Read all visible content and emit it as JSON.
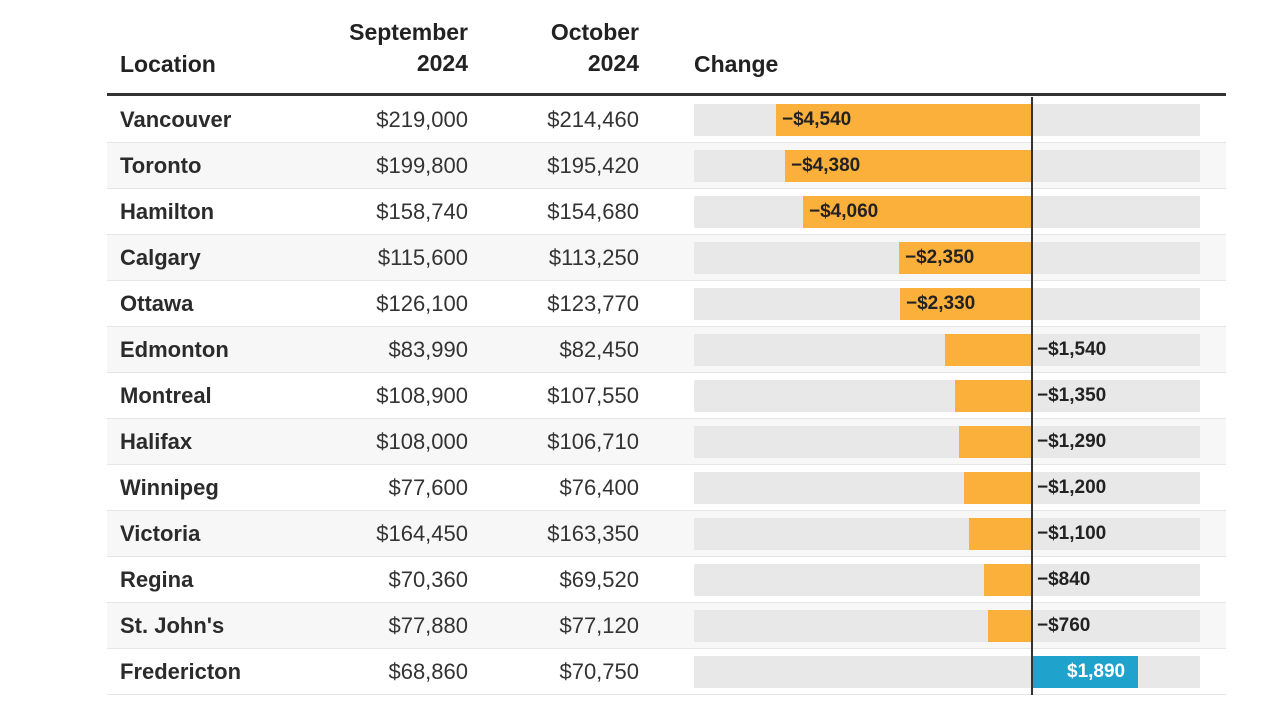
{
  "headers": {
    "location": "Location",
    "september": "September 2024",
    "september_line1": "September",
    "september_line2": "2024",
    "october": "October 2024",
    "october_line1": "October",
    "october_line2": "2024",
    "change": "Change"
  },
  "colors": {
    "negative": "#fbb03b",
    "positive": "#1fa3cc",
    "track": "#e8e8e8",
    "negative_label": "#222222",
    "positive_label": "#ffffff"
  },
  "rows": [
    {
      "location": "Vancouver",
      "sep": "$219,000",
      "oct": "$214,460",
      "change_label": "−$4,540"
    },
    {
      "location": "Toronto",
      "sep": "$199,800",
      "oct": "$195,420",
      "change_label": "−$4,380"
    },
    {
      "location": "Hamilton",
      "sep": "$158,740",
      "oct": "$154,680",
      "change_label": "−$4,060"
    },
    {
      "location": "Calgary",
      "sep": "$115,600",
      "oct": "$113,250",
      "change_label": "−$2,350"
    },
    {
      "location": "Ottawa",
      "sep": "$126,100",
      "oct": "$123,770",
      "change_label": "−$2,330"
    },
    {
      "location": "Edmonton",
      "sep": "$83,990",
      "oct": "$82,450",
      "change_label": "−$1,540"
    },
    {
      "location": "Montreal",
      "sep": "$108,900",
      "oct": "$107,550",
      "change_label": "−$1,350"
    },
    {
      "location": "Halifax",
      "sep": "$108,000",
      "oct": "$106,710",
      "change_label": "−$1,290"
    },
    {
      "location": "Winnipeg",
      "sep": "$77,600",
      "oct": "$76,400",
      "change_label": "−$1,200"
    },
    {
      "location": "Victoria",
      "sep": "$164,450",
      "oct": "$163,350",
      "change_label": "−$1,100"
    },
    {
      "location": "Regina",
      "sep": "$70,360",
      "oct": "$69,520",
      "change_label": "−$840"
    },
    {
      "location": "St. John's",
      "sep": "$77,880",
      "oct": "$77,120",
      "change_label": "−$760"
    },
    {
      "location": "Fredericton",
      "sep": "$68,860",
      "oct": "$70,750",
      "change_label": "$1,890"
    }
  ],
  "chart_data": {
    "type": "bar",
    "orientation": "horizontal",
    "title": "Change",
    "categories": [
      "Vancouver",
      "Toronto",
      "Hamilton",
      "Calgary",
      "Ottawa",
      "Edmonton",
      "Montreal",
      "Halifax",
      "Winnipeg",
      "Victoria",
      "Regina",
      "St. John's",
      "Fredericton"
    ],
    "values": [
      -4540,
      -4380,
      -4060,
      -2350,
      -2330,
      -1540,
      -1350,
      -1290,
      -1200,
      -1100,
      -840,
      -760,
      1890
    ],
    "xlim": [
      -6300,
      3200
    ],
    "grid": false,
    "legend": "none"
  }
}
